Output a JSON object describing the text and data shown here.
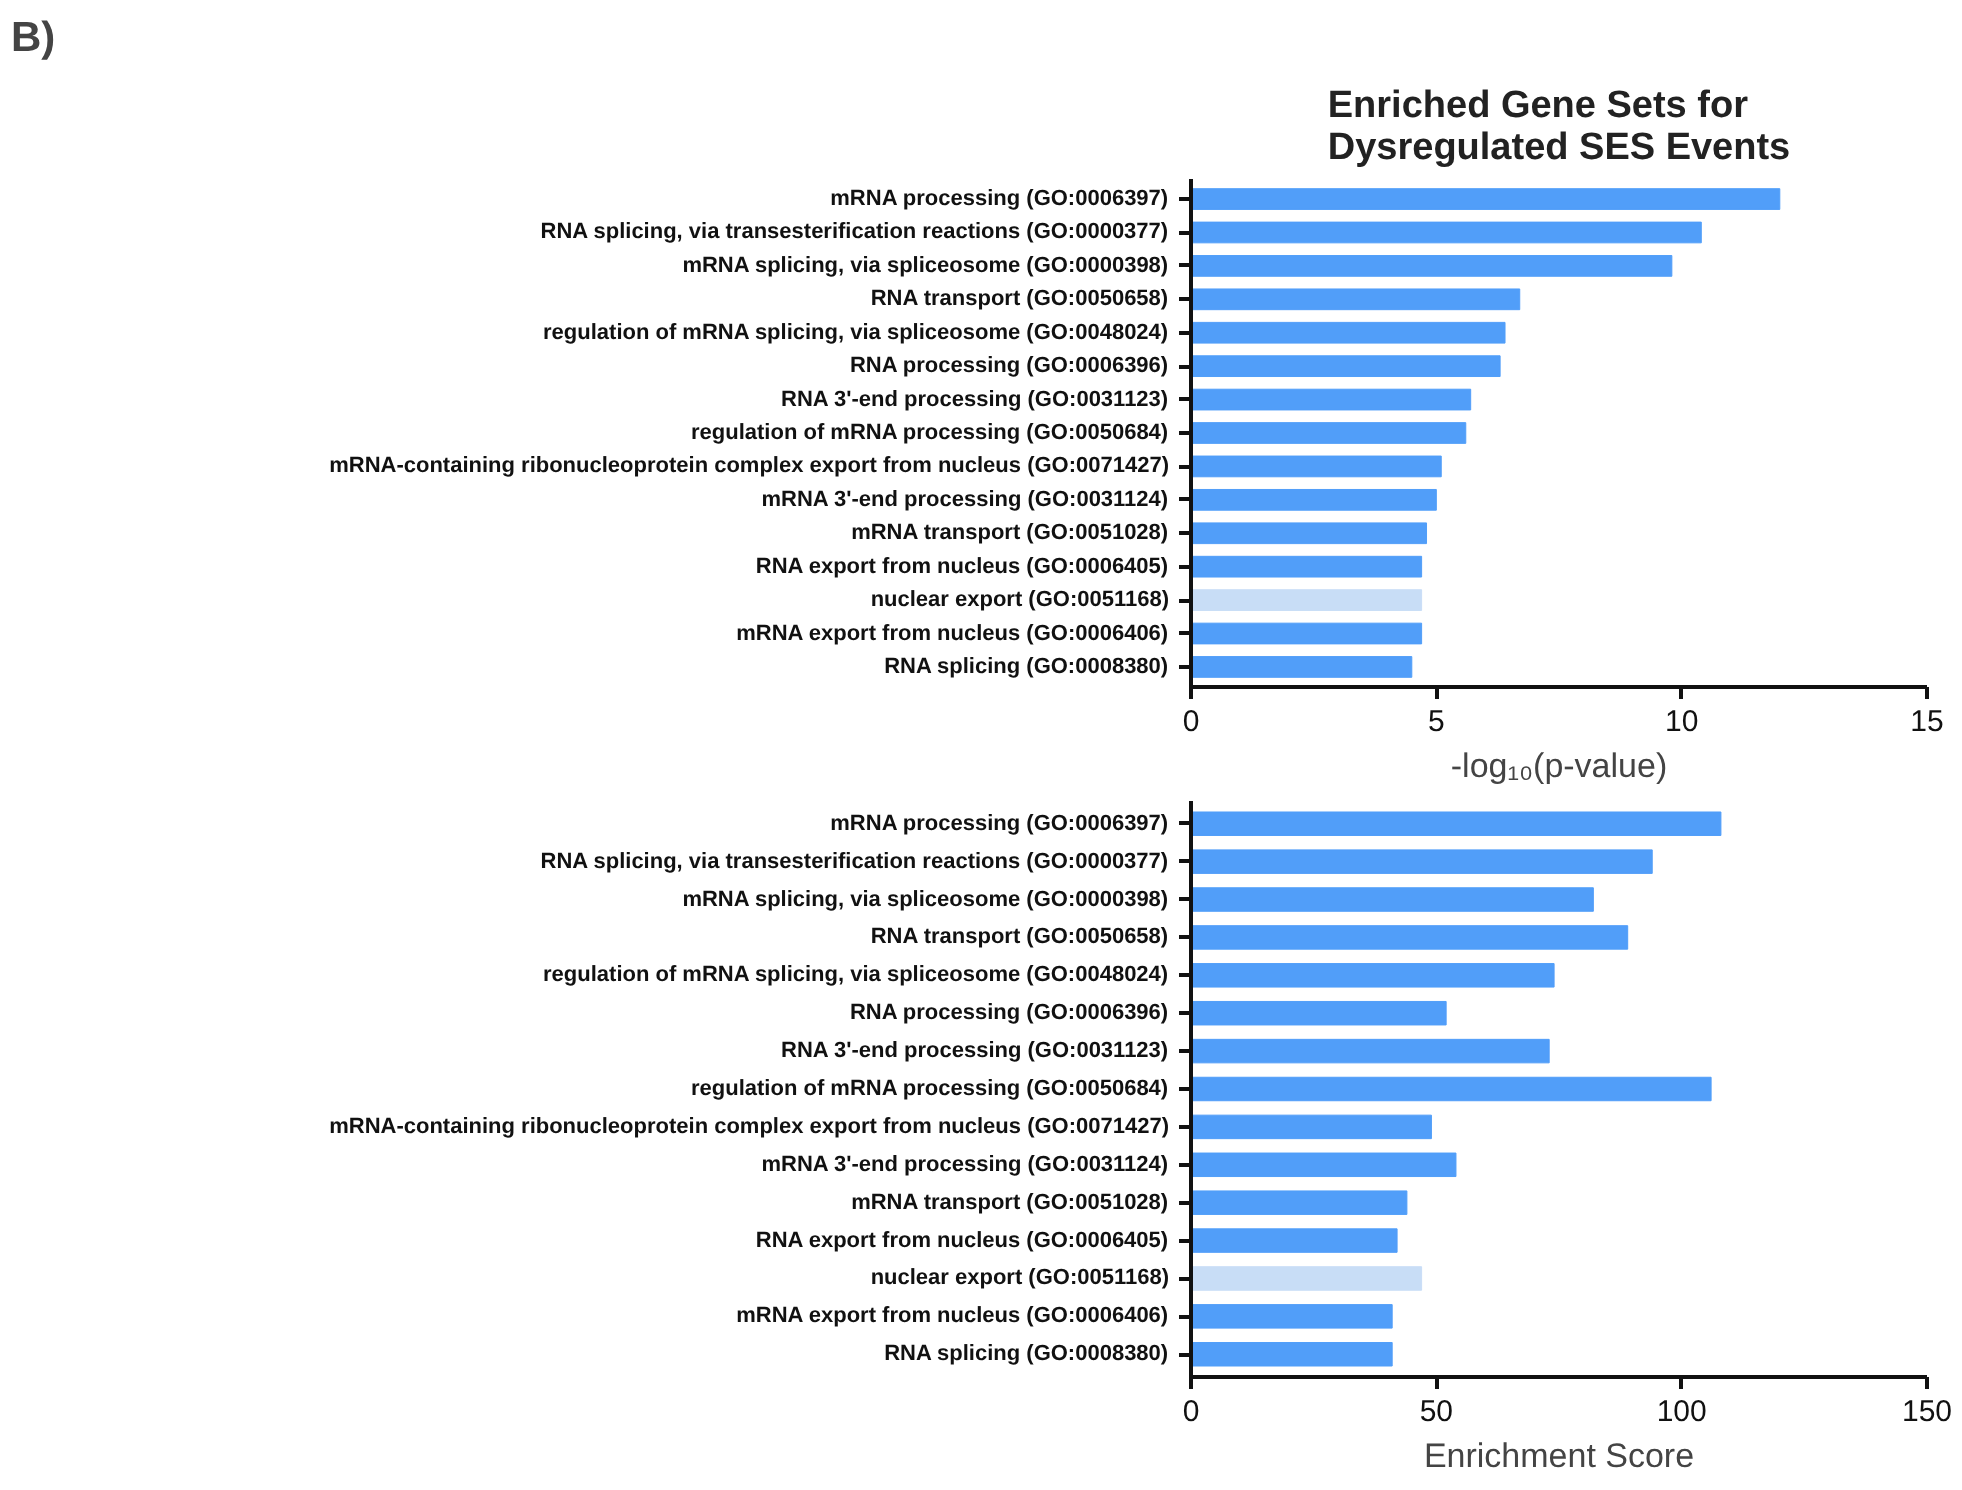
{
  "chart_data": [
    {
      "type": "bar",
      "orientation": "horizontal",
      "title": "Enriched Gene Sets for Dysregulated SES Events",
      "annotations": [
        "B)"
      ],
      "xlabel": "-log₁₀(p-value)",
      "categories": [
        "mRNA processing (GO:0006397)",
        "RNA splicing, via transesterification reactions (GO:0000377)",
        "mRNA splicing, via spliceosome (GO:0000398)",
        "RNA transport (GO:0050658)",
        "regulation of mRNA splicing, via spliceosome (GO:0048024)",
        "RNA processing (GO:0006396)",
        "RNA 3'-end processing (GO:0031123)",
        "regulation of mRNA processing (GO:0050684)",
        "mRNA-containing ribonucleoprotein complex export from nucleus (GO:0071427)",
        "mRNA 3'-end processing (GO:0031124)",
        "mRNA transport (GO:0051028)",
        "RNA export from nucleus (GO:0006405)",
        "nuclear export (GO:0051168)",
        "mRNA export from nucleus (GO:0006406)",
        "RNA splicing (GO:0008380)"
      ],
      "values": [
        12.0,
        10.4,
        9.8,
        6.7,
        6.4,
        6.3,
        5.7,
        5.6,
        5.1,
        5.0,
        4.8,
        4.7,
        4.7,
        4.7,
        4.5
      ],
      "colors": [
        "#519ef9",
        "#519ef9",
        "#519ef9",
        "#519ef9",
        "#519ef9",
        "#519ef9",
        "#519ef9",
        "#519ef9",
        "#519ef9",
        "#519ef9",
        "#519ef9",
        "#519ef9",
        "#c8ddf6",
        "#519ef9",
        "#519ef9"
      ],
      "xlim": [
        0,
        15
      ],
      "xticks": [
        0,
        5,
        10,
        15
      ],
      "grid": false
    },
    {
      "type": "bar",
      "orientation": "horizontal",
      "xlabel": "Enrichment Score",
      "categories": [
        "mRNA processing (GO:0006397)",
        "RNA splicing, via transesterification reactions (GO:0000377)",
        "mRNA splicing, via spliceosome (GO:0000398)",
        "RNA transport (GO:0050658)",
        "regulation of mRNA splicing, via spliceosome (GO:0048024)",
        "RNA processing (GO:0006396)",
        "RNA 3'-end processing (GO:0031123)",
        "regulation of mRNA processing (GO:0050684)",
        "mRNA-containing ribonucleoprotein complex export from nucleus (GO:0071427)",
        "mRNA 3'-end processing (GO:0031124)",
        "mRNA transport (GO:0051028)",
        "RNA export from nucleus (GO:0006405)",
        "nuclear export (GO:0051168)",
        "mRNA export from nucleus (GO:0006406)",
        "RNA splicing (GO:0008380)"
      ],
      "values": [
        108,
        94,
        82,
        89,
        74,
        52,
        73,
        106,
        49,
        54,
        44,
        42,
        47,
        41,
        41
      ],
      "colors": [
        "#519ef9",
        "#519ef9",
        "#519ef9",
        "#519ef9",
        "#519ef9",
        "#519ef9",
        "#519ef9",
        "#519ef9",
        "#519ef9",
        "#519ef9",
        "#519ef9",
        "#519ef9",
        "#c8ddf6",
        "#519ef9",
        "#519ef9"
      ],
      "xlim": [
        0,
        150
      ],
      "xticks": [
        0,
        50,
        100,
        150
      ],
      "grid": false
    }
  ]
}
